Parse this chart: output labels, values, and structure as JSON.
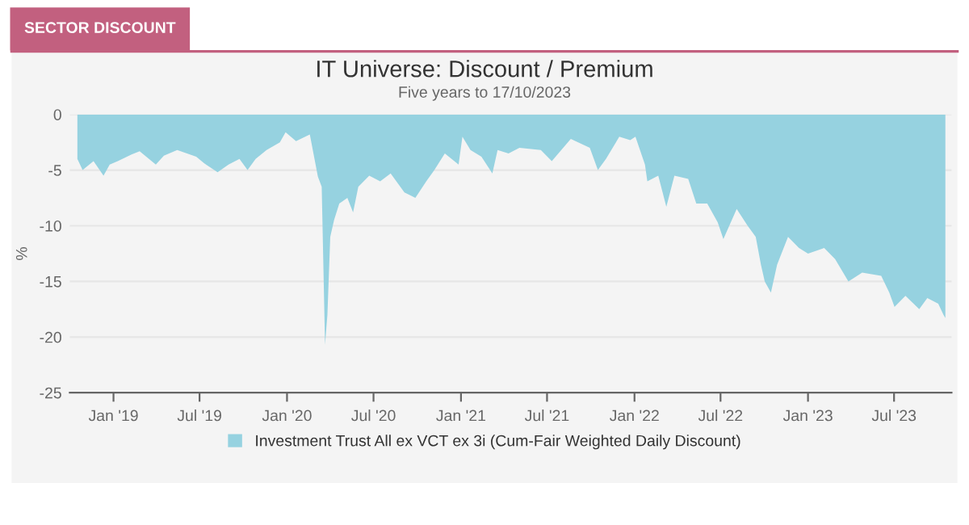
{
  "chart_data": {
    "type": "area",
    "title": "IT Universe: Discount / Premium",
    "subtitle": "Five years to 17/10/2023",
    "ylabel": "%",
    "annotations": [
      "SECTOR DISCOUNT"
    ],
    "x": [
      "2018-10-17",
      "2018-10-28",
      "2018-11-20",
      "2018-12-11",
      "2018-12-24",
      "2019-01-10",
      "2019-02-08",
      "2019-02-25",
      "2019-03-31",
      "2019-04-17",
      "2019-05-15",
      "2019-06-24",
      "2019-07-11",
      "2019-08-08",
      "2019-08-31",
      "2019-09-23",
      "2019-10-10",
      "2019-10-27",
      "2019-11-19",
      "2019-12-17",
      "2019-12-29",
      "2020-01-20",
      "2020-02-18",
      "2020-03-06",
      "2020-03-14",
      "2020-03-21",
      "2020-03-26",
      "2020-04-01",
      "2020-04-09",
      "2020-04-20",
      "2020-05-07",
      "2020-05-19",
      "2020-05-30",
      "2020-06-22",
      "2020-07-15",
      "2020-08-06",
      "2020-09-04",
      "2020-09-27",
      "2020-10-20",
      "2020-11-06",
      "2020-11-28",
      "2020-12-27",
      "2021-01-04",
      "2021-01-21",
      "2021-02-13",
      "2021-03-08",
      "2021-03-19",
      "2021-04-11",
      "2021-05-04",
      "2021-06-18",
      "2021-07-11",
      "2021-08-20",
      "2021-09-29",
      "2021-10-16",
      "2021-11-02",
      "2021-11-30",
      "2021-12-23",
      "2022-01-03",
      "2022-01-23",
      "2022-01-28",
      "2022-02-20",
      "2022-03-09",
      "2022-03-26",
      "2022-04-24",
      "2022-05-11",
      "2022-06-03",
      "2022-06-25",
      "2022-07-07",
      "2022-08-04",
      "2022-08-27",
      "2022-09-13",
      "2022-09-24",
      "2022-10-02",
      "2022-10-15",
      "2022-10-28",
      "2022-11-20",
      "2022-12-13",
      "2023-01-01",
      "2023-02-04",
      "2023-02-27",
      "2023-03-27",
      "2023-04-25",
      "2023-06-04",
      "2023-06-21",
      "2023-07-02",
      "2023-07-25",
      "2023-08-23",
      "2023-09-09",
      "2023-10-02",
      "2023-10-13",
      "2023-10-17"
    ],
    "series": [
      {
        "name": "Investment Trust All ex VCT ex 3i (Cum-Fair Weighted Daily Discount)",
        "color": "#96d2e0",
        "values": [
          -4.0,
          -5.0,
          -4.2,
          -5.5,
          -4.5,
          -4.2,
          -3.6,
          -3.3,
          -4.5,
          -3.7,
          -3.2,
          -3.8,
          -4.4,
          -5.2,
          -4.5,
          -4.0,
          -5.0,
          -4.0,
          -3.2,
          -2.5,
          -1.6,
          -2.4,
          -1.8,
          -5.6,
          -6.5,
          -20.7,
          -18.0,
          -11.0,
          -9.5,
          -8.0,
          -7.5,
          -8.8,
          -6.5,
          -5.5,
          -6.0,
          -5.3,
          -7.0,
          -7.5,
          -6.0,
          -5.0,
          -3.5,
          -4.5,
          -2.0,
          -3.2,
          -3.8,
          -5.3,
          -3.2,
          -3.5,
          -3.0,
          -3.2,
          -4.2,
          -2.2,
          -3.0,
          -5.0,
          -4.0,
          -2.0,
          -2.3,
          -2.0,
          -4.5,
          -6.0,
          -5.5,
          -8.3,
          -5.5,
          -5.8,
          -8.0,
          -8.0,
          -9.7,
          -11.2,
          -8.5,
          -10.0,
          -11.0,
          -13.5,
          -15.0,
          -16.0,
          -13.5,
          -11.0,
          -12.0,
          -12.5,
          -12.0,
          -13.0,
          -15.0,
          -14.2,
          -14.5,
          -16.0,
          -17.3,
          -16.3,
          -17.5,
          -16.5,
          -17.0,
          -18.0,
          -18.3
        ]
      }
    ],
    "xlim": [
      "2018-10-01",
      "2023-10-30"
    ],
    "xticks": [
      {
        "value": "2019-01-01",
        "label": "Jan '19"
      },
      {
        "value": "2019-07-01",
        "label": "Jul '19"
      },
      {
        "value": "2020-01-01",
        "label": "Jan '20"
      },
      {
        "value": "2020-07-01",
        "label": "Jul '20"
      },
      {
        "value": "2021-01-01",
        "label": "Jan '21"
      },
      {
        "value": "2021-07-01",
        "label": "Jul '21"
      },
      {
        "value": "2022-01-01",
        "label": "Jan '22"
      },
      {
        "value": "2022-07-01",
        "label": "Jul '22"
      },
      {
        "value": "2023-01-01",
        "label": "Jan '23"
      },
      {
        "value": "2023-07-01",
        "label": "Jul '23"
      }
    ],
    "ylim": [
      -25,
      0
    ],
    "yticks": [
      0,
      -5,
      -10,
      -15,
      -20,
      -25
    ],
    "grid": "y",
    "legend": "bottom"
  }
}
